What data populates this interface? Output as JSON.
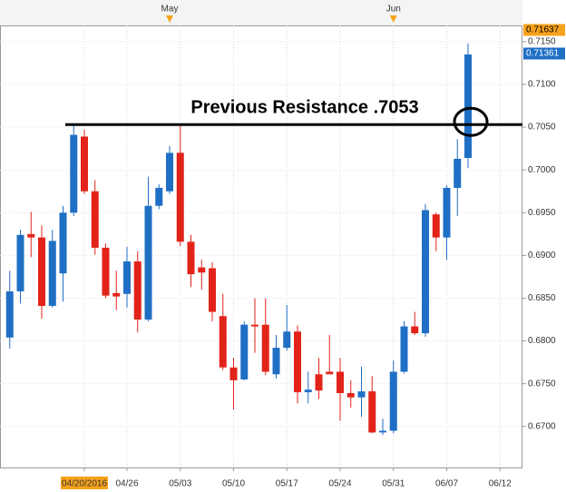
{
  "chart_data": {
    "type": "candlestick",
    "categories": [
      null,
      null,
      null,
      null,
      null,
      null,
      null,
      "04/20/2016",
      null,
      null,
      null,
      "04/26",
      null,
      null,
      null,
      null,
      "05/03",
      null,
      null,
      null,
      null,
      "05/10",
      null,
      null,
      null,
      null,
      "05/17",
      null,
      null,
      null,
      null,
      "05/24",
      null,
      null,
      null,
      null,
      "05/31",
      null,
      null,
      null,
      null,
      "06/07",
      null,
      null,
      null,
      null,
      "06/12"
    ],
    "top_labels": [
      null,
      null,
      null,
      null,
      null,
      null,
      null,
      null,
      null,
      null,
      null,
      null,
      null,
      null,
      null,
      "May",
      null,
      null,
      null,
      null,
      null,
      null,
      null,
      null,
      null,
      null,
      null,
      null,
      null,
      null,
      null,
      null,
      null,
      null,
      null,
      null,
      "Jun",
      null,
      null,
      null,
      null,
      null,
      null,
      null,
      null,
      null,
      null
    ],
    "open": [
      0.6804,
      0.6858,
      0.6925,
      0.6921,
      0.6841,
      0.6879,
      0.695,
      0.7039,
      0.6975,
      0.6909,
      0.6856,
      0.6855,
      0.6893,
      0.6825,
      0.6958,
      0.6975,
      0.702,
      0.6916,
      0.6886,
      0.6885,
      0.6829,
      0.6769,
      0.6755,
      0.6819,
      0.6819,
      0.6761,
      0.6792,
      0.6811,
      0.674,
      0.6761,
      0.6764,
      0.6764,
      0.6739,
      0.6734,
      0.6741,
      0.6693,
      0.6695,
      0.6764,
      0.6817,
      0.6809,
      0.6948,
      0.6921,
      0.6979,
      0.7014,
      null,
      null,
      null
    ],
    "high": [
      0.6882,
      0.693,
      0.6951,
      0.6935,
      0.693,
      0.6958,
      0.7052,
      0.7047,
      0.6988,
      0.6914,
      0.6882,
      0.691,
      0.6905,
      0.6992,
      0.6983,
      0.7028,
      0.7054,
      0.6924,
      0.6895,
      0.6892,
      0.6855,
      0.678,
      0.6823,
      0.685,
      0.685,
      0.6807,
      0.6842,
      0.6818,
      0.6764,
      0.678,
      0.6807,
      0.678,
      0.6754,
      0.677,
      0.6759,
      0.6709,
      0.6777,
      0.6823,
      0.6834,
      0.696,
      0.695,
      0.6982,
      0.7036,
      0.7148,
      null,
      null,
      null
    ],
    "low": [
      0.6791,
      0.6844,
      0.6898,
      0.6826,
      0.6839,
      0.6846,
      0.6946,
      0.6972,
      0.6901,
      0.685,
      0.6836,
      0.6839,
      0.681,
      0.6823,
      0.6954,
      0.6972,
      0.6911,
      0.6863,
      0.686,
      0.6823,
      0.6766,
      0.672,
      0.6754,
      0.6786,
      0.676,
      0.6756,
      0.6789,
      0.6727,
      0.6727,
      0.6732,
      0.6762,
      0.6707,
      0.6722,
      0.6711,
      0.6692,
      0.669,
      0.6692,
      0.6762,
      0.6807,
      0.6805,
      0.6905,
      0.6895,
      0.6946,
      0.7002,
      null,
      null,
      null
    ],
    "close": [
      0.6858,
      0.6924,
      0.6921,
      0.6841,
      0.6917,
      0.695,
      0.7041,
      0.6975,
      0.6909,
      0.6853,
      0.6852,
      0.6893,
      0.6825,
      0.6958,
      0.6979,
      0.702,
      0.6916,
      0.6878,
      0.688,
      0.6834,
      0.6769,
      0.6754,
      0.6819,
      0.6817,
      0.6764,
      0.6792,
      0.6811,
      0.674,
      0.6743,
      0.6742,
      0.6761,
      0.6739,
      0.6734,
      0.6741,
      0.6693,
      0.6695,
      0.6764,
      0.6817,
      0.6809,
      0.6953,
      0.6921,
      0.6979,
      0.7013,
      0.7135,
      null,
      null,
      null
    ],
    "up_color": "#1f6fc5",
    "down_color": "#e2231a",
    "ylim": [
      0.6652,
      0.7169
    ],
    "yticks": [
      {
        "value": 0.715,
        "label": "0.7150"
      },
      {
        "value": 0.71,
        "label": "0.7100"
      },
      {
        "value": 0.705,
        "label": "0.7050"
      },
      {
        "value": 0.7,
        "label": "0.7000"
      },
      {
        "value": 0.695,
        "label": "0.6950"
      },
      {
        "value": 0.69,
        "label": "0.6900"
      },
      {
        "value": 0.685,
        "label": "0.6850"
      },
      {
        "value": 0.68,
        "label": "0.6800"
      },
      {
        "value": 0.675,
        "label": "0.6750"
      },
      {
        "value": 0.67,
        "label": "0.6700"
      }
    ],
    "price_markers": [
      {
        "value": 0.71637,
        "color": "#f7a21b"
      },
      {
        "value": 0.71361,
        "color": "#1f6fc5"
      }
    ],
    "annotation": {
      "text": "Previous Resistance .7053",
      "value": 0.7053
    },
    "grid": true
  }
}
